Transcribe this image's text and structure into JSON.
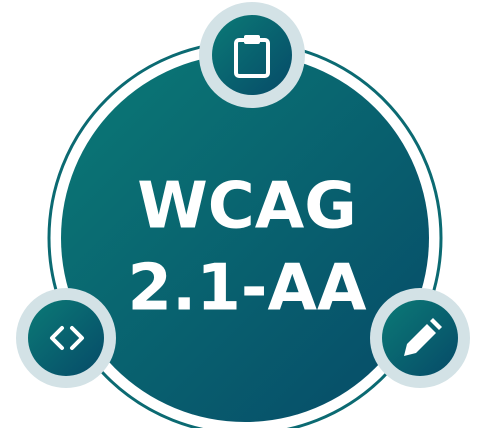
{
  "title_lines": [
    "WCAG",
    "2.1-AA"
  ]
}
